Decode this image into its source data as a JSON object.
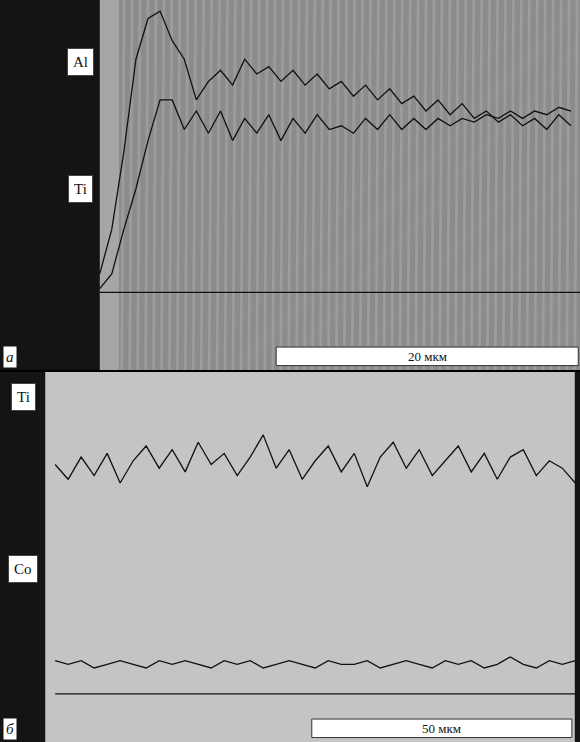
{
  "chart_data": [
    {
      "type": "line",
      "panel": "а",
      "x": [
        6.6,
        7.4,
        8.2,
        9.0,
        9.8,
        10.6,
        11.4,
        12.2,
        13.0,
        13.8,
        14.6,
        15.4,
        16.2,
        17.0,
        17.8,
        18.6,
        19.4,
        20.2,
        21.0,
        21.8,
        22.6,
        23.4,
        24.2,
        25.0,
        25.8,
        26.6,
        27.4,
        28.2,
        29.0,
        29.8,
        30.6,
        31.4,
        32.2,
        33.0,
        33.8,
        34.6,
        35.4,
        36.2,
        37.0,
        37.8
      ],
      "series": [
        {
          "name": "Al",
          "color": "#111111",
          "values": [
            26,
            38,
            59,
            84,
            95,
            97,
            89,
            84,
            73,
            78,
            81,
            77,
            84,
            80,
            82,
            78,
            81,
            77,
            80,
            76,
            78,
            74,
            77,
            73,
            76,
            72,
            74,
            70,
            73,
            69,
            72,
            68,
            70,
            67,
            69,
            66,
            68,
            65,
            69,
            66
          ]
        },
        {
          "name": "Ti",
          "color": "#111111",
          "values": [
            22,
            26,
            38,
            49,
            62,
            73,
            73,
            65,
            70,
            64,
            70,
            62,
            68,
            64,
            69,
            62,
            68,
            64,
            69,
            65,
            66,
            64,
            68,
            65,
            69,
            65,
            68,
            65,
            68,
            66,
            68,
            67,
            69,
            68,
            70,
            68,
            70,
            69,
            71,
            70
          ]
        }
      ],
      "baseline": 21,
      "xlim": [
        0,
        38.4
      ],
      "ylim": [
        0,
        100
      ],
      "tick_labels": false,
      "scale_bar": {
        "label": "20 мкм",
        "length": 20
      }
    },
    {
      "type": "line",
      "panel": "б",
      "x": [
        10.6,
        13.1,
        15.6,
        18.1,
        20.6,
        23.1,
        25.6,
        28.1,
        30.6,
        33.1,
        35.6,
        38.1,
        40.6,
        43.1,
        45.6,
        48.1,
        50.6,
        53.1,
        55.6,
        58.1,
        60.6,
        63.1,
        65.6,
        68.1,
        70.6,
        73.1,
        75.6,
        78.1,
        80.6,
        83.1,
        85.6,
        88.1,
        90.6,
        93.1,
        95.6,
        98.1,
        100.6,
        103.1,
        105.6,
        108.1,
        110.6
      ],
      "series": [
        {
          "name": "Ti",
          "color": "#111111",
          "values": [
            75,
            71,
            77,
            72,
            78,
            70,
            76,
            80,
            74,
            79,
            73,
            81,
            75,
            78,
            72,
            77,
            83,
            74,
            79,
            71,
            76,
            80,
            73,
            78,
            69,
            77,
            81,
            74,
            79,
            72,
            76,
            80,
            73,
            78,
            71,
            77,
            79,
            72,
            76,
            74,
            70
          ]
        },
        {
          "name": "Co",
          "color": "#111111",
          "values": [
            22,
            21,
            22,
            20,
            21,
            22,
            21,
            20,
            22,
            21,
            22,
            21,
            20,
            22,
            21,
            22,
            20,
            21,
            22,
            21,
            20,
            22,
            21,
            21,
            22,
            20,
            21,
            22,
            21,
            20,
            22,
            21,
            22,
            20,
            21,
            23,
            21,
            20,
            22,
            21,
            22
          ]
        }
      ],
      "baseline": 13,
      "xlim": [
        0,
        111.5
      ],
      "ylim": [
        0,
        100
      ],
      "tick_labels": false,
      "scale_bar": {
        "label": "50 мкм",
        "length": 50
      }
    }
  ]
}
